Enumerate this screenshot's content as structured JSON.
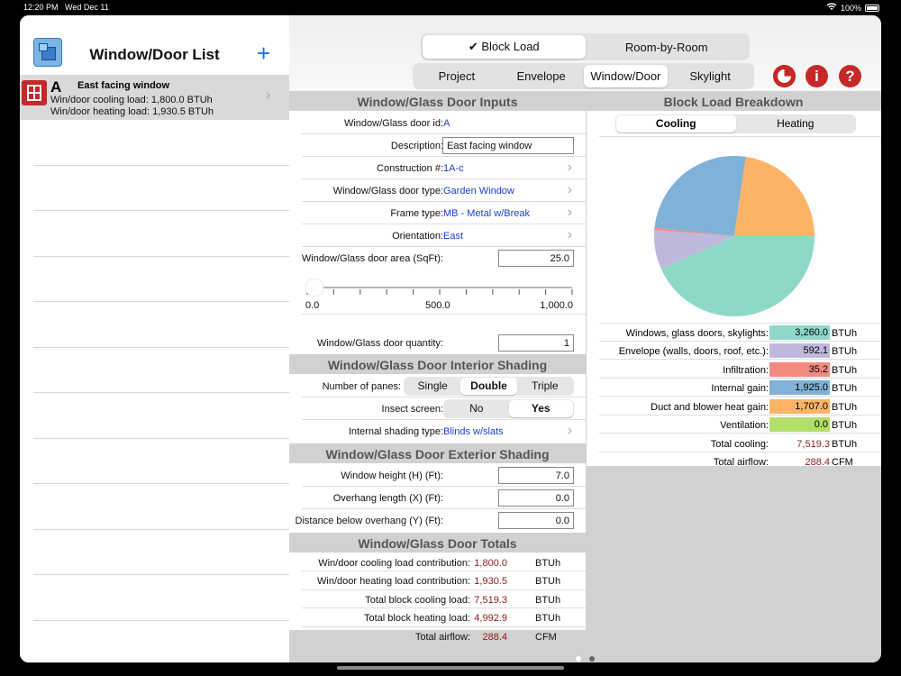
{
  "status": {
    "time": "12:20 PM",
    "date": "Wed Dec 11",
    "battery": "100%"
  },
  "sidebar": {
    "title": "Window/Door List",
    "add": "+",
    "item": {
      "id": "A",
      "name": "East facing window",
      "cooling": "Win/door cooling load: 1,800.0 BTUh",
      "heating": "Win/door heating load: 1,930.5 BTUh"
    }
  },
  "top": {
    "mode_tabs": [
      {
        "label": "✔ Block Load",
        "selected": true
      },
      {
        "label": "Room-by-Room",
        "selected": false
      }
    ],
    "section_tabs": [
      {
        "label": "Project",
        "selected": false
      },
      {
        "label": "Envelope",
        "selected": false
      },
      {
        "label": "Window/Door",
        "selected": true
      },
      {
        "label": "Skylight",
        "selected": false
      }
    ],
    "info_icon": "i",
    "help_icon": "?"
  },
  "inputs": {
    "title": "Window/Glass Door Inputs",
    "id_label": "Window/Glass door id:",
    "id_value": "A",
    "desc_label": "Description:",
    "desc_value": "East facing window",
    "construction_label": "Construction #:",
    "construction_value": "1A-c",
    "type_label": "Window/Glass door type:",
    "type_value": "Garden Window",
    "frame_label": "Frame type:",
    "frame_value": "MB - Metal w/Break",
    "orientation_label": "Orientation:",
    "orientation_value": "East",
    "area_label": "Window/Glass door area (SqFt):",
    "area_value": "25.0",
    "slider": {
      "min": "0.0",
      "mid": "500.0",
      "max": "1,000.0",
      "value": 25
    },
    "qty_label": "Window/Glass door quantity:",
    "qty_value": "1"
  },
  "interior": {
    "title": "Window/Glass Door Interior Shading",
    "panes_label": "Number of panes:",
    "panes": [
      {
        "label": "Single",
        "selected": false
      },
      {
        "label": "Double",
        "selected": true
      },
      {
        "label": "Triple",
        "selected": false
      }
    ],
    "insect_label": "Insect screen:",
    "insect": [
      {
        "label": "No",
        "selected": false
      },
      {
        "label": "Yes",
        "selected": true
      }
    ],
    "shading_label": "Internal shading type:",
    "shading_value": "Blinds w/slats"
  },
  "exterior": {
    "title": "Window/Glass Door Exterior Shading",
    "height_label": "Window height (H) (Ft):",
    "height_value": "7.0",
    "overhang_label": "Overhang length (X) (Ft):",
    "overhang_value": "0.0",
    "distance_label": "Distance below overhang (Y) (Ft):",
    "distance_value": "0.0"
  },
  "totals": {
    "title": "Window/Glass Door Totals",
    "rows": [
      {
        "label": "Win/door cooling load contribution:",
        "value": "1,800.0",
        "unit": "BTUh"
      },
      {
        "label": "Win/door heating load contribution:",
        "value": "1,930.5",
        "unit": "BTUh"
      },
      {
        "label": "Total block cooling load:",
        "value": "7,519.3",
        "unit": "BTUh"
      },
      {
        "label": "Total block heating load:",
        "value": "4,992.9",
        "unit": "BTUh"
      },
      {
        "label": "Total airflow:",
        "value": "288.4",
        "unit": "CFM"
      }
    ]
  },
  "breakdown": {
    "title": "Block Load Breakdown",
    "tabs": [
      {
        "label": "Cooling",
        "selected": true
      },
      {
        "label": "Heating",
        "selected": false
      }
    ],
    "items": [
      {
        "label": "Windows, glass doors, skylights:",
        "value": "3,260.0",
        "num": 3260.0,
        "unit": "BTUh",
        "color": "#8ed8c8"
      },
      {
        "label": "Envelope (walls, doors, roof, etc.):",
        "value": "592.1",
        "num": 592.1,
        "unit": "BTUh",
        "color": "#c0b8dc"
      },
      {
        "label": "Infiltration:",
        "value": "35.2",
        "num": 35.2,
        "unit": "BTUh",
        "color": "#f28a80"
      },
      {
        "label": "Internal gain:",
        "value": "1,925.0",
        "num": 1925.0,
        "unit": "BTUh",
        "color": "#80b1d6"
      },
      {
        "label": "Duct and blower heat gain:",
        "value": "1,707.0",
        "num": 1707.0,
        "unit": "BTUh",
        "color": "#fbb467"
      },
      {
        "label": "Ventilation:",
        "value": "0.0",
        "num": 0.0,
        "unit": "BTUh",
        "color": "#b3de69"
      }
    ],
    "total_cooling_label": "Total cooling:",
    "total_cooling_value": "7,519.3",
    "total_cooling_unit": "BTUh",
    "total_airflow_label": "Total airflow:",
    "total_airflow_value": "288.4",
    "total_airflow_unit": "CFM"
  }
}
